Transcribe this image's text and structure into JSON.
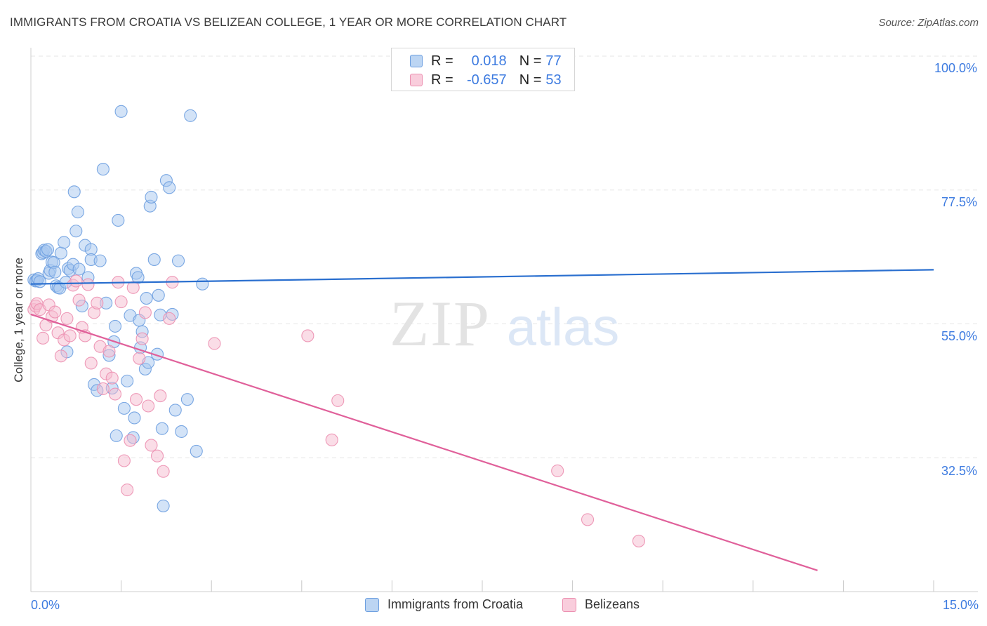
{
  "title": "IMMIGRANTS FROM CROATIA VS BELIZEAN COLLEGE, 1 YEAR OR MORE CORRELATION CHART",
  "source": "Source: ZipAtlas.com",
  "watermark": {
    "zip": "ZIP",
    "atlas": "atlas"
  },
  "legend": {
    "r_label": "R =",
    "n_label": "N =",
    "croatia": {
      "r": "0.018",
      "n": "77"
    },
    "belize": {
      "r": "-0.657",
      "n": "53"
    }
  },
  "colors": {
    "croatia_fill": "#a8c8f0",
    "croatia_stroke": "#6d9fe0",
    "croatia_line": "#2a6fcf",
    "belize_fill": "#f6bcd0",
    "belize_stroke": "#ec8fb0",
    "belize_line": "#e0609a",
    "tick_text": "#3d7be0",
    "grid": "#e6e6e6"
  },
  "chart_data": {
    "type": "scatter",
    "title": "IMMIGRANTS FROM CROATIA VS BELIZEAN COLLEGE, 1 YEAR OR MORE CORRELATION CHART",
    "xlabel": "",
    "ylabel": "College, 1 year or more",
    "xlim": [
      0,
      15
    ],
    "ylim": [
      10,
      100
    ],
    "x_tick_labels": [
      "0.0%",
      "15.0%"
    ],
    "y_ticks": [
      32.5,
      55.0,
      77.5,
      100.0
    ],
    "y_tick_labels": [
      "32.5%",
      "55.0%",
      "77.5%",
      "100.0%"
    ],
    "grid": true,
    "legend_position": "top-center",
    "series": [
      {
        "name": "Immigrants from Croatia",
        "r": 0.018,
        "n": 77,
        "trend": [
          [
            0,
            61.7
          ],
          [
            15,
            64.1
          ]
        ],
        "points": [
          [
            0.05,
            62.4
          ],
          [
            0.08,
            62.2
          ],
          [
            0.1,
            62.3
          ],
          [
            0.12,
            62.6
          ],
          [
            0.15,
            62.1
          ],
          [
            0.18,
            66.8
          ],
          [
            0.2,
            67.0
          ],
          [
            0.22,
            67.4
          ],
          [
            0.25,
            67.2
          ],
          [
            0.28,
            67.5
          ],
          [
            0.3,
            63.5
          ],
          [
            0.32,
            64.0
          ],
          [
            0.35,
            65.4
          ],
          [
            0.38,
            65.3
          ],
          [
            0.4,
            63.7
          ],
          [
            0.42,
            61.4
          ],
          [
            0.45,
            61.1
          ],
          [
            0.48,
            61.0
          ],
          [
            0.5,
            66.9
          ],
          [
            0.55,
            68.7
          ],
          [
            0.58,
            62.0
          ],
          [
            0.6,
            50.3
          ],
          [
            0.62,
            64.3
          ],
          [
            0.65,
            64.0
          ],
          [
            0.7,
            65.0
          ],
          [
            0.72,
            77.2
          ],
          [
            0.75,
            70.6
          ],
          [
            0.78,
            73.8
          ],
          [
            0.8,
            64.2
          ],
          [
            0.85,
            58.0
          ],
          [
            0.9,
            68.2
          ],
          [
            0.95,
            62.8
          ],
          [
            1.0,
            67.5
          ],
          [
            1.0,
            65.8
          ],
          [
            1.05,
            44.8
          ],
          [
            1.1,
            43.8
          ],
          [
            1.15,
            65.6
          ],
          [
            1.2,
            81.0
          ],
          [
            1.25,
            58.5
          ],
          [
            1.3,
            49.7
          ],
          [
            1.35,
            44.2
          ],
          [
            1.38,
            52.0
          ],
          [
            1.4,
            54.6
          ],
          [
            1.42,
            36.2
          ],
          [
            1.45,
            72.4
          ],
          [
            1.5,
            90.7
          ],
          [
            1.55,
            40.8
          ],
          [
            1.6,
            45.4
          ],
          [
            1.65,
            56.4
          ],
          [
            1.7,
            35.9
          ],
          [
            1.72,
            39.2
          ],
          [
            1.75,
            63.5
          ],
          [
            1.78,
            62.8
          ],
          [
            1.8,
            55.6
          ],
          [
            1.82,
            51.0
          ],
          [
            1.85,
            53.7
          ],
          [
            1.9,
            47.4
          ],
          [
            1.92,
            59.3
          ],
          [
            1.95,
            48.5
          ],
          [
            1.98,
            74.8
          ],
          [
            2.0,
            76.3
          ],
          [
            2.05,
            65.8
          ],
          [
            2.1,
            49.9
          ],
          [
            2.12,
            59.8
          ],
          [
            2.15,
            56.5
          ],
          [
            2.18,
            37.4
          ],
          [
            2.2,
            24.4
          ],
          [
            2.25,
            79.1
          ],
          [
            2.3,
            77.9
          ],
          [
            2.35,
            56.6
          ],
          [
            2.4,
            40.5
          ],
          [
            2.45,
            65.6
          ],
          [
            2.5,
            36.9
          ],
          [
            2.6,
            42.3
          ],
          [
            2.65,
            90.0
          ],
          [
            2.75,
            33.6
          ],
          [
            2.85,
            61.7
          ]
        ]
      },
      {
        "name": "Belizeans",
        "r": -0.657,
        "n": 53,
        "trend": [
          [
            0,
            56.6
          ],
          [
            15,
            7.2
          ]
        ],
        "points": [
          [
            0.05,
            57.4
          ],
          [
            0.08,
            58.0
          ],
          [
            0.1,
            58.4
          ],
          [
            0.15,
            57.4
          ],
          [
            0.2,
            52.6
          ],
          [
            0.25,
            54.8
          ],
          [
            0.3,
            58.2
          ],
          [
            0.35,
            56.2
          ],
          [
            0.4,
            57.0
          ],
          [
            0.45,
            53.5
          ],
          [
            0.5,
            49.6
          ],
          [
            0.55,
            52.3
          ],
          [
            0.6,
            55.9
          ],
          [
            0.65,
            53.0
          ],
          [
            0.7,
            61.5
          ],
          [
            0.75,
            62.2
          ],
          [
            0.8,
            59.0
          ],
          [
            0.85,
            54.4
          ],
          [
            0.9,
            53.0
          ],
          [
            0.95,
            61.6
          ],
          [
            1.0,
            48.4
          ],
          [
            1.05,
            56.9
          ],
          [
            1.1,
            58.5
          ],
          [
            1.15,
            51.2
          ],
          [
            1.2,
            44.1
          ],
          [
            1.25,
            46.6
          ],
          [
            1.3,
            50.4
          ],
          [
            1.35,
            45.9
          ],
          [
            1.4,
            43.2
          ],
          [
            1.45,
            62.0
          ],
          [
            1.5,
            58.7
          ],
          [
            1.55,
            32.0
          ],
          [
            1.6,
            27.1
          ],
          [
            1.65,
            35.4
          ],
          [
            1.7,
            61.1
          ],
          [
            1.75,
            42.3
          ],
          [
            1.8,
            49.2
          ],
          [
            1.85,
            52.5
          ],
          [
            1.9,
            56.9
          ],
          [
            1.95,
            41.2
          ],
          [
            2.0,
            34.6
          ],
          [
            2.1,
            32.8
          ],
          [
            2.15,
            42.9
          ],
          [
            2.2,
            30.2
          ],
          [
            2.3,
            55.9
          ],
          [
            2.35,
            62.0
          ],
          [
            3.05,
            51.7
          ],
          [
            4.6,
            53.0
          ],
          [
            5.0,
            35.5
          ],
          [
            5.1,
            42.1
          ],
          [
            8.75,
            30.3
          ],
          [
            9.25,
            22.1
          ],
          [
            10.1,
            18.5
          ]
        ]
      }
    ]
  },
  "bottom_legend": {
    "croatia": "Immigrants from Croatia",
    "belize": "Belizeans"
  }
}
